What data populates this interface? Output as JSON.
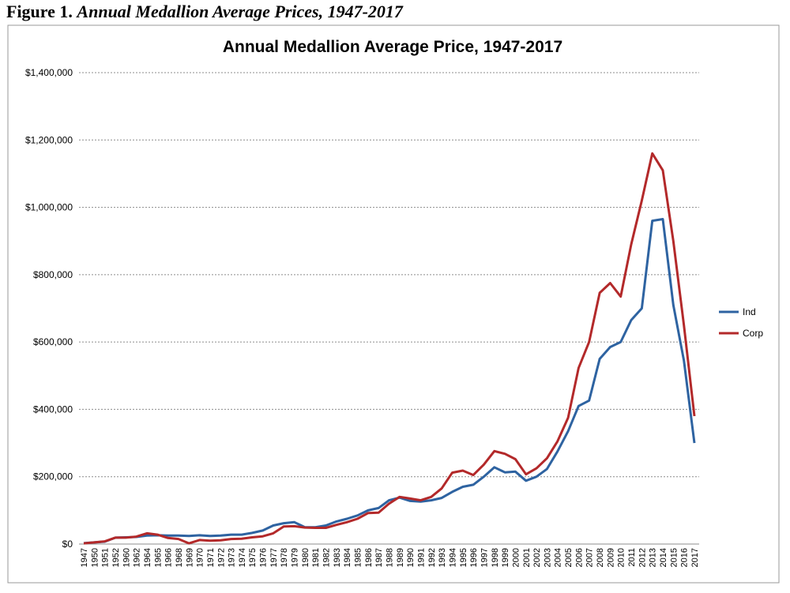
{
  "figure": {
    "number": "Figure 1.",
    "title": "Annual Medallion Average Prices, 1947-2017"
  },
  "chart_data": {
    "type": "line",
    "title": "Annual Medallion Average Price, 1947-2017",
    "xlabel": "",
    "ylabel": "",
    "ylim": [
      0,
      1400000
    ],
    "yticks": [
      0,
      200000,
      400000,
      600000,
      800000,
      1000000,
      1200000,
      1400000
    ],
    "ytick_labels": [
      "$0",
      "$200,000",
      "$400,000",
      "$600,000",
      "$800,000",
      "$1,000,000",
      "$1,200,000",
      "$1,400,000"
    ],
    "grid": true,
    "legend_position": "right",
    "categories": [
      "1947",
      "1950",
      "1951",
      "1952",
      "1960",
      "1962",
      "1964",
      "1965",
      "1966",
      "1968",
      "1969",
      "1970",
      "1971",
      "1972",
      "1973",
      "1974",
      "1975",
      "1976",
      "1977",
      "1978",
      "1979",
      "1980",
      "1981",
      "1982",
      "1983",
      "1984",
      "1985",
      "1986",
      "1987",
      "1988",
      "1989",
      "1990",
      "1991",
      "1992",
      "1993",
      "1994",
      "1995",
      "1996",
      "1997",
      "1998",
      "1999",
      "2000",
      "2001",
      "2002",
      "2003",
      "2004",
      "2005",
      "2006",
      "2007",
      "2008",
      "2009",
      "2010",
      "2011",
      "2012",
      "2013",
      "2014",
      "2015",
      "2016",
      "2017"
    ],
    "series": [
      {
        "name": "Ind",
        "color": "#2e63a1",
        "values": [
          2500,
          5000,
          7000,
          19000,
          20000,
          21000,
          25000,
          26000,
          25000,
          25000,
          24000,
          26000,
          24000,
          25000,
          28000,
          28000,
          33000,
          40000,
          55000,
          62000,
          65000,
          50000,
          50000,
          55000,
          67000,
          75000,
          85000,
          100000,
          107000,
          130000,
          138000,
          128000,
          126000,
          130000,
          137000,
          155000,
          170000,
          176000,
          200000,
          228000,
          213000,
          215000,
          188000,
          200000,
          223000,
          275000,
          335000,
          410000,
          426000,
          550000,
          585000,
          600000,
          665000,
          700000,
          960000,
          965000,
          710000,
          545000,
          300000
        ]
      },
      {
        "name": "Corp",
        "color": "#b3292a",
        "values": [
          2000,
          5000,
          8000,
          19000,
          19000,
          22000,
          32000,
          28000,
          18000,
          15000,
          2000,
          12000,
          10000,
          11000,
          15000,
          16000,
          20000,
          23000,
          32000,
          52000,
          53000,
          49000,
          48000,
          48000,
          57000,
          65000,
          75000,
          92000,
          93000,
          120000,
          140000,
          135000,
          130000,
          140000,
          165000,
          212000,
          218000,
          205000,
          236000,
          276000,
          268000,
          252000,
          207000,
          225000,
          255000,
          305000,
          375000,
          523000,
          600000,
          746000,
          775000,
          735000,
          890000,
          1020000,
          1160000,
          1110000,
          900000,
          650000,
          380000
        ]
      }
    ]
  }
}
